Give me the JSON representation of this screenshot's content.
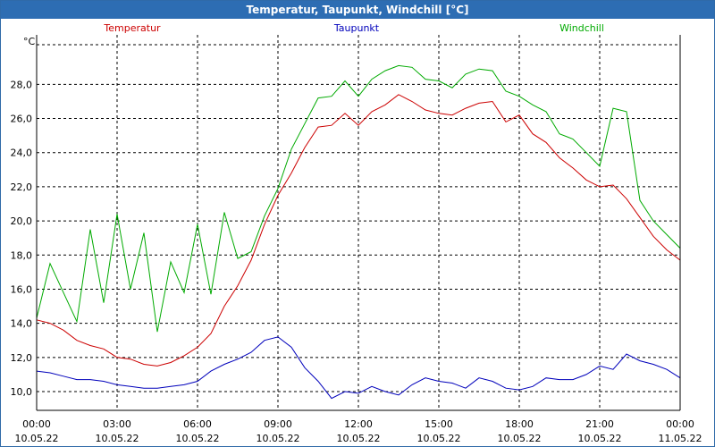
{
  "window": {
    "title": "Temperatur, Taupunkt, Windchill [°C]"
  },
  "chart_data": {
    "type": "line",
    "title": "Temperatur, Taupunkt, Windchill [°C]",
    "ylabel": "°C",
    "xlabel": "",
    "ylim": [
      8.9,
      30.9
    ],
    "yticks": [
      "10,0",
      "12,0",
      "14,0",
      "16,0",
      "18,0",
      "20,0",
      "22,0",
      "24,0",
      "26,0",
      "28,0"
    ],
    "ytick_values": [
      10,
      12,
      14,
      16,
      18,
      20,
      22,
      24,
      26,
      28
    ],
    "xlim": [
      0,
      24
    ],
    "xtick_values": [
      0,
      3,
      6,
      9,
      12,
      15,
      18,
      21,
      24
    ],
    "xticks": [
      {
        "time": "00:00",
        "date": "10.05.22"
      },
      {
        "time": "03:00",
        "date": "10.05.22"
      },
      {
        "time": "06:00",
        "date": "10.05.22"
      },
      {
        "time": "09:00",
        "date": "10.05.22"
      },
      {
        "time": "12:00",
        "date": "10.05.22"
      },
      {
        "time": "15:00",
        "date": "10.05.22"
      },
      {
        "time": "18:00",
        "date": "10.05.22"
      },
      {
        "time": "21:00",
        "date": "10.05.22"
      },
      {
        "time": "00:00",
        "date": "11.05.22"
      }
    ],
    "grid": true,
    "legend_position": "top",
    "series": [
      {
        "name": "Temperatur",
        "color": "#cc0000",
        "x": [
          0,
          0.5,
          1,
          1.5,
          2,
          2.5,
          3,
          3.5,
          4,
          4.5,
          5,
          5.5,
          6,
          6.5,
          7,
          7.5,
          8,
          8.5,
          9,
          9.5,
          10,
          10.5,
          11,
          11.5,
          12,
          12.5,
          13,
          13.5,
          14,
          14.5,
          15,
          15.5,
          16,
          16.5,
          17,
          17.5,
          18,
          18.5,
          19,
          19.5,
          20,
          20.5,
          21,
          21.5,
          22,
          22.5,
          23,
          23.5,
          24
        ],
        "values": [
          14.2,
          14.0,
          13.6,
          13.0,
          12.7,
          12.5,
          12.0,
          11.9,
          11.6,
          11.5,
          11.7,
          12.1,
          12.6,
          13.4,
          15.0,
          16.2,
          17.7,
          19.8,
          21.5,
          22.8,
          24.3,
          25.5,
          25.6,
          26.3,
          25.6,
          26.4,
          26.8,
          27.4,
          27.0,
          26.5,
          26.3,
          26.2,
          26.6,
          26.9,
          27.0,
          25.8,
          26.2,
          25.1,
          24.6,
          23.7,
          23.1,
          22.4,
          22.0,
          22.1,
          21.3,
          20.2,
          19.1,
          18.3,
          17.7
        ]
      },
      {
        "name": "Taupunkt",
        "color": "#0000bb",
        "x": [
          0,
          0.5,
          1,
          1.5,
          2,
          2.5,
          3,
          3.5,
          4,
          4.5,
          5,
          5.5,
          6,
          6.5,
          7,
          7.5,
          8,
          8.5,
          9,
          9.5,
          10,
          10.5,
          11,
          11.5,
          12,
          12.5,
          13,
          13.5,
          14,
          14.5,
          15,
          15.5,
          16,
          16.5,
          17,
          17.5,
          18,
          18.5,
          19,
          19.5,
          20,
          20.5,
          21,
          21.5,
          22,
          22.5,
          23,
          23.5,
          24
        ],
        "values": [
          11.2,
          11.1,
          10.9,
          10.7,
          10.7,
          10.6,
          10.4,
          10.3,
          10.2,
          10.2,
          10.3,
          10.4,
          10.6,
          11.2,
          11.6,
          11.9,
          12.3,
          13.0,
          13.2,
          12.6,
          11.4,
          10.6,
          9.6,
          10.0,
          9.9,
          10.3,
          10.0,
          9.8,
          10.4,
          10.8,
          10.6,
          10.5,
          10.2,
          10.8,
          10.6,
          10.2,
          10.1,
          10.3,
          10.8,
          10.7,
          10.7,
          11.0,
          11.5,
          11.3,
          12.2,
          11.8,
          11.6,
          11.3,
          10.8
        ]
      },
      {
        "name": "Windchill",
        "color": "#00aa00",
        "x": [
          0,
          0.5,
          1,
          1.5,
          2,
          2.5,
          3,
          3.5,
          4,
          4.5,
          5,
          5.5,
          6,
          6.5,
          7,
          7.5,
          8,
          8.5,
          9,
          9.5,
          10,
          10.5,
          11,
          11.5,
          12,
          12.5,
          13,
          13.5,
          14,
          14.5,
          15,
          15.5,
          16,
          16.5,
          17,
          17.5,
          18,
          18.5,
          19,
          19.5,
          20,
          20.5,
          21,
          21.5,
          22,
          22.5,
          23,
          23.5,
          24
        ],
        "values": [
          14.3,
          17.5,
          15.8,
          14.1,
          19.5,
          15.2,
          20.4,
          16.0,
          19.3,
          13.5,
          17.6,
          15.8,
          19.8,
          15.7,
          20.5,
          17.8,
          18.2,
          20.3,
          21.9,
          24.2,
          25.7,
          27.2,
          27.3,
          28.2,
          27.3,
          28.3,
          28.8,
          29.1,
          29.0,
          28.3,
          28.2,
          27.8,
          28.6,
          28.9,
          28.8,
          27.6,
          27.3,
          26.8,
          26.4,
          25.1,
          24.8,
          24.0,
          23.2,
          26.6,
          26.4,
          21.2,
          20.0,
          19.2,
          18.4
        ]
      }
    ]
  }
}
